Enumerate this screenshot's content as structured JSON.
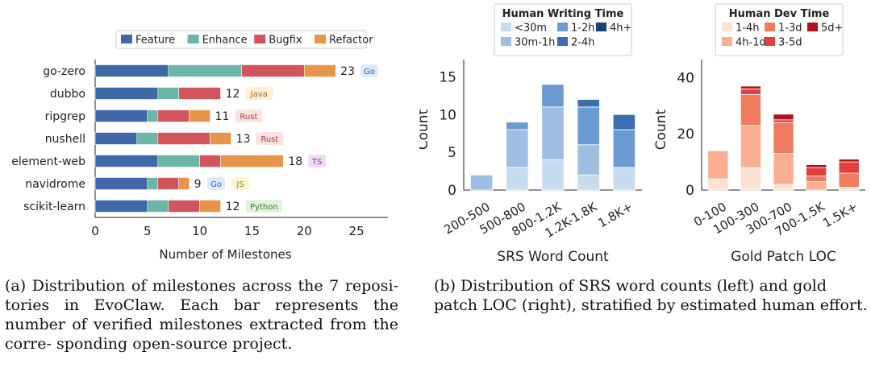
{
  "chart_data": [
    {
      "type": "bar",
      "orientation": "horizontal",
      "stacked": true,
      "categories": [
        "go-zero",
        "dubbo",
        "ripgrep",
        "nushell",
        "element-web",
        "navidrome",
        "scikit-learn"
      ],
      "series": [
        {
          "name": "Feature",
          "color": "#3e68a6",
          "values": [
            7,
            6,
            5,
            4,
            6,
            5,
            5
          ]
        },
        {
          "name": "Enhance",
          "color": "#6bb5a9",
          "values": [
            7,
            2,
            1,
            2,
            4,
            1,
            2
          ]
        },
        {
          "name": "Bugfix",
          "color": "#d2555d",
          "values": [
            6,
            4,
            3,
            5,
            2,
            2,
            3
          ]
        },
        {
          "name": "Refactor",
          "color": "#e6954b",
          "values": [
            3,
            0,
            2,
            2,
            6,
            1,
            2
          ]
        }
      ],
      "totals": [
        "23",
        "12",
        "11",
        "13",
        "18",
        "9",
        "12"
      ],
      "languages": [
        [
          "Go"
        ],
        [
          "Java"
        ],
        [
          "Rust"
        ],
        [
          "Rust"
        ],
        [
          "TS"
        ],
        [
          "Go",
          "JS"
        ],
        [
          "Python"
        ]
      ],
      "language_colors": {
        "Go": {
          "bg": "#dcecfa",
          "fg": "#2b5f95"
        },
        "Java": {
          "bg": "#fdf0d5",
          "fg": "#a8651c"
        },
        "Rust": {
          "bg": "#fbe3e3",
          "fg": "#a83a3a"
        },
        "TS": {
          "bg": "#efdcf4",
          "fg": "#7b3d8f"
        },
        "JS": {
          "bg": "#fdf6d3",
          "fg": "#9a8418"
        },
        "Python": {
          "bg": "#e2f2dd",
          "fg": "#3b7a33"
        }
      },
      "xlabel": "Number of Milestones",
      "xlim": [
        0,
        28
      ],
      "xticks": [
        "0",
        "5",
        "10",
        "15",
        "20",
        "25"
      ],
      "legend": "top"
    },
    {
      "type": "bar",
      "stacked": true,
      "title": "Human Writing Time",
      "categories": [
        "200-500",
        "500-800",
        "800-1.2K",
        "1.2K-1.8K",
        "1.8K+"
      ],
      "series": [
        {
          "name": "<30m",
          "color": "#c8dcf0",
          "values": [
            0,
            3,
            4,
            2,
            3
          ]
        },
        {
          "name": "30m-1h",
          "color": "#9ebfe2",
          "values": [
            2,
            5,
            7,
            4,
            0
          ]
        },
        {
          "name": "1-2h",
          "color": "#6b9bd1",
          "values": [
            0,
            1,
            3,
            5,
            5
          ]
        },
        {
          "name": "2-4h",
          "color": "#3a6eb0",
          "values": [
            0,
            0,
            0,
            1,
            2
          ]
        },
        {
          "name": "4h+",
          "color": "#1d3f78",
          "values": [
            0,
            0,
            0,
            0,
            0
          ]
        }
      ],
      "xlabel": "SRS Word Count",
      "ylabel": "Count",
      "ylim": [
        0,
        16
      ],
      "yticks": [
        "0",
        "5",
        "10",
        "15"
      ],
      "legend": "top"
    },
    {
      "type": "bar",
      "stacked": true,
      "title": "Human Dev Time",
      "categories": [
        "0-100",
        "100-300",
        "300-700",
        "700-1.5K",
        "1.5K+"
      ],
      "series": [
        {
          "name": "1-4h",
          "color": "#fde1d1",
          "values": [
            4,
            8,
            2,
            0,
            1
          ]
        },
        {
          "name": "4h-1d",
          "color": "#f9ae91",
          "values": [
            10,
            15,
            11,
            3,
            0
          ]
        },
        {
          "name": "1-3d",
          "color": "#f07b5e",
          "values": [
            0,
            11,
            11,
            2,
            5
          ]
        },
        {
          "name": "3-5d",
          "color": "#e0413c",
          "values": [
            0,
            2,
            1,
            3,
            4
          ]
        },
        {
          "name": "5d+",
          "color": "#b0131b",
          "values": [
            0,
            1,
            2,
            1,
            1
          ]
        }
      ],
      "xlabel": "Gold Patch LOC",
      "ylabel": "Count",
      "ylim": [
        0,
        43
      ],
      "yticks": [
        "0",
        "20",
        "40"
      ],
      "legend": "top"
    }
  ],
  "captions": {
    "a": "(a) Distribution of milestones across the 7 reposi- tories in EvoClaw. Each bar represents the number of verified milestones extracted from the corre- sponding open-source project.",
    "b": "(b) Distribution of SRS word counts (left) and gold patch LOC (right), stratified by estimated human effort."
  }
}
